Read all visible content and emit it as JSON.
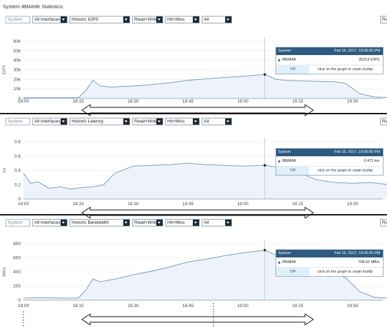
{
  "page_title": "System IBMA9K Statistics:",
  "right_button_label": "Ra",
  "tooltip": {
    "series": "System",
    "timestamp": "Feb 16, 2017, 10:06:00 PM",
    "object": "IBMA9K",
    "tip_label": "TIP",
    "tip_text": "click on the graph to unpin tooltip"
  },
  "x_ticks": [
    "18:00",
    "18:15",
    "18:30",
    "18:45",
    "19:00",
    "19:15",
    "19:30"
  ],
  "x_axis": {
    "range": [
      "18:00",
      "19:40"
    ]
  },
  "panels": [
    {
      "controls": {
        "scope": "System",
        "interfaces": "All Interfaces",
        "metric": "Historic IOPS",
        "rw": "Read+Write",
        "hit": "Hit+Miss",
        "filter": "All"
      },
      "tooltip_value": "25213 IOPS",
      "chart_data": {
        "type": "area",
        "ylabel": "IOPS",
        "ylim": [
          0,
          60000
        ],
        "y_ticks": [
          "0",
          "10k",
          "20k",
          "30k",
          "40k",
          "50k",
          "60k"
        ],
        "y_tick_values": [
          0,
          10000,
          20000,
          30000,
          40000,
          50000,
          60000
        ],
        "x": [
          "18:00",
          "18:05",
          "18:10",
          "18:15",
          "18:17",
          "18:19",
          "18:21",
          "18:24",
          "18:27",
          "18:30",
          "18:35",
          "18:40",
          "18:45",
          "18:50",
          "18:55",
          "19:00",
          "19:03",
          "19:06",
          "19:09",
          "19:12",
          "19:15",
          "19:20",
          "19:25",
          "19:28",
          "19:32",
          "19:36",
          "19:40"
        ],
        "values": [
          800,
          900,
          900,
          900,
          8000,
          19000,
          13000,
          12000,
          12500,
          13000,
          14500,
          16500,
          19000,
          20500,
          22000,
          23200,
          24300,
          25213,
          20000,
          19000,
          18500,
          18000,
          17500,
          16000,
          5000,
          1500,
          1000
        ],
        "pinned_x": "19:06",
        "pinned_value": 25213
      }
    },
    {
      "controls": {
        "scope": "System",
        "interfaces": "All Interfaces",
        "metric": "Historic Latency",
        "rw": "Read+Write",
        "hit": "Hit+Miss",
        "filter": "All"
      },
      "tooltip_value": "0.471 ms",
      "chart_data": {
        "type": "area",
        "ylabel": "ms",
        "ylim": [
          0,
          0.8
        ],
        "y_ticks": [
          "0",
          "0.2",
          "0.4",
          "0.6",
          "0.8"
        ],
        "y_tick_values": [
          0,
          0.2,
          0.4,
          0.6,
          0.8
        ],
        "x": [
          "18:00",
          "18:02",
          "18:04",
          "18:07",
          "18:10",
          "18:13",
          "18:16",
          "18:19",
          "18:22",
          "18:25",
          "18:30",
          "18:35",
          "18:40",
          "18:45",
          "18:50",
          "18:55",
          "19:00",
          "19:06",
          "19:10",
          "19:15",
          "19:20",
          "19:25",
          "19:30",
          "19:35",
          "19:40"
        ],
        "values": [
          0.36,
          0.22,
          0.24,
          0.15,
          0.17,
          0.14,
          0.16,
          0.17,
          0.2,
          0.36,
          0.46,
          0.47,
          0.48,
          0.5,
          0.48,
          0.47,
          0.46,
          0.471,
          0.44,
          0.38,
          0.27,
          0.23,
          0.22,
          0.23,
          0.2
        ],
        "pinned_x": "19:06",
        "pinned_value": 0.471
      }
    },
    {
      "controls": {
        "scope": "System",
        "interfaces": "All Interfaces",
        "metric": "Historic Bandwidth",
        "rw": "Read+Write",
        "hit": "Hit+Miss",
        "filter": "All"
      },
      "tooltip_value": "708.62 MB/s",
      "chart_data": {
        "type": "area",
        "ylabel": "MB/s",
        "ylim": [
          0,
          800
        ],
        "y_ticks": [
          "0",
          "200",
          "400",
          "600",
          "800"
        ],
        "y_tick_values": [
          0,
          200,
          400,
          600,
          800
        ],
        "x": [
          "18:00",
          "18:05",
          "18:10",
          "18:15",
          "18:17",
          "18:19",
          "18:21",
          "18:24",
          "18:27",
          "18:30",
          "18:35",
          "18:40",
          "18:45",
          "18:50",
          "18:55",
          "19:00",
          "19:03",
          "19:06",
          "19:09",
          "19:12",
          "19:15",
          "19:20",
          "19:25",
          "19:28",
          "19:32",
          "19:36",
          "19:40"
        ],
        "values": [
          30,
          35,
          30,
          30,
          140,
          300,
          260,
          290,
          320,
          360,
          410,
          470,
          540,
          580,
          630,
          670,
          690,
          708.62,
          640,
          600,
          560,
          480,
          380,
          320,
          120,
          40,
          30
        ],
        "pinned_x": "19:06",
        "pinned_value": 708.62
      }
    }
  ]
}
